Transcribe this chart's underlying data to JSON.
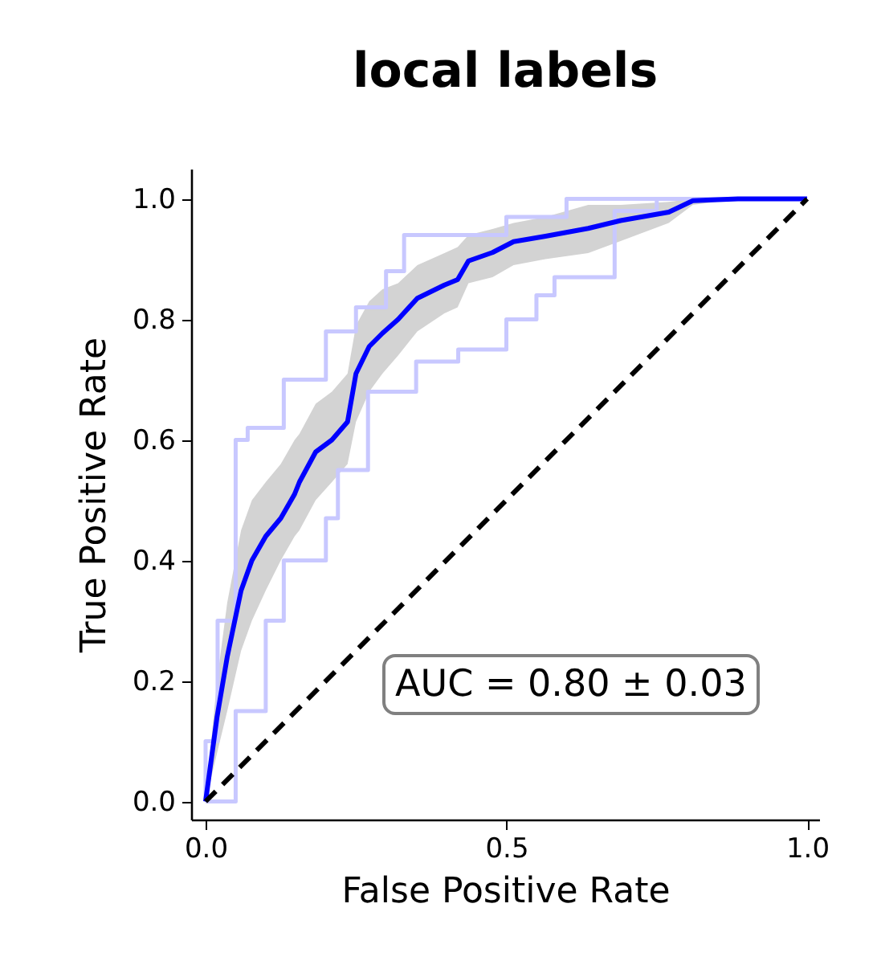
{
  "chart_data": {
    "type": "line",
    "title": "local labels",
    "xlabel": "False Positive Rate",
    "ylabel": "True Positive Rate",
    "xlim": [
      -0.024,
      1.02
    ],
    "ylim": [
      -0.03,
      1.05
    ],
    "xticks": [
      {
        "value": 0,
        "label": "0.0"
      },
      {
        "value": 0.5,
        "label": "0.5"
      },
      {
        "value": 1,
        "label": "1.0"
      }
    ],
    "yticks": [
      {
        "value": 0,
        "label": "0.0"
      },
      0.2,
      0.4,
      0.6,
      0.8,
      {
        "value": 1,
        "label": "1.0"
      }
    ],
    "annotations": [
      "AUC = 0.80 ± 0.03"
    ],
    "series": [
      {
        "color": "#c8c8ff",
        "x": [
          0,
          0,
          0.02,
          0.02,
          0.05,
          0.05,
          0.07,
          0.07,
          0.13,
          0.13,
          0.2,
          0.2,
          0.25,
          0.25,
          0.3,
          0.3,
          0.33,
          0.33,
          0.5,
          0.5,
          0.6,
          0.6,
          1
        ],
        "values": [
          0,
          0.1,
          0.1,
          0.3,
          0.3,
          0.6,
          0.6,
          0.62,
          0.62,
          0.7,
          0.7,
          0.78,
          0.78,
          0.82,
          0.82,
          0.88,
          0.88,
          0.94,
          0.94,
          0.97,
          0.97,
          1,
          1
        ]
      },
      {
        "color": "#c8c8ff",
        "x": [
          0,
          0.05,
          0.05,
          0.1,
          0.1,
          0.13,
          0.13,
          0.2,
          0.2,
          0.22,
          0.22,
          0.27,
          0.27,
          0.35,
          0.35,
          0.42,
          0.42,
          0.5,
          0.5,
          0.55,
          0.55,
          0.58,
          0.58,
          0.68,
          0.68,
          0.75,
          0.75,
          1
        ],
        "values": [
          0,
          0,
          0.15,
          0.15,
          0.3,
          0.3,
          0.4,
          0.4,
          0.47,
          0.47,
          0.55,
          0.55,
          0.68,
          0.68,
          0.73,
          0.73,
          0.75,
          0.75,
          0.8,
          0.8,
          0.84,
          0.84,
          0.87,
          0.87,
          0.98,
          0.98,
          1,
          1
        ]
      },
      {
        "color": "#0000ff",
        "x": [
          0,
          0.019,
          0.036,
          0.059,
          0.077,
          0.1,
          0.125,
          0.148,
          0.156,
          0.183,
          0.21,
          0.236,
          0.25,
          0.272,
          0.294,
          0.32,
          0.352,
          0.397,
          0.419,
          0.437,
          0.477,
          0.512,
          0.565,
          0.636,
          0.69,
          0.77,
          0.81,
          0.885,
          1
        ],
        "values": [
          0,
          0.14,
          0.24,
          0.35,
          0.4,
          0.44,
          0.47,
          0.51,
          0.53,
          0.58,
          0.6,
          0.63,
          0.71,
          0.755,
          0.777,
          0.8,
          0.835,
          0.857,
          0.866,
          0.897,
          0.911,
          0.929,
          0.938,
          0.951,
          0.964,
          0.978,
          0.997,
          1,
          1
        ],
        "lower": [
          0,
          0.08,
          0.15,
          0.25,
          0.3,
          0.35,
          0.4,
          0.44,
          0.45,
          0.5,
          0.53,
          0.56,
          0.63,
          0.68,
          0.71,
          0.74,
          0.78,
          0.81,
          0.82,
          0.86,
          0.87,
          0.89,
          0.9,
          0.91,
          0.93,
          0.96,
          0.99,
          1,
          1
        ],
        "upper": [
          0,
          0.2,
          0.33,
          0.45,
          0.5,
          0.53,
          0.56,
          0.6,
          0.61,
          0.66,
          0.68,
          0.71,
          0.79,
          0.83,
          0.85,
          0.86,
          0.89,
          0.91,
          0.92,
          0.94,
          0.95,
          0.96,
          0.97,
          0.99,
          0.99,
          0.995,
          1,
          1,
          1
        ]
      },
      {
        "color": "#000000",
        "line_style": "dashed",
        "x": [
          0,
          1
        ],
        "values": [
          0,
          1
        ]
      }
    ]
  }
}
